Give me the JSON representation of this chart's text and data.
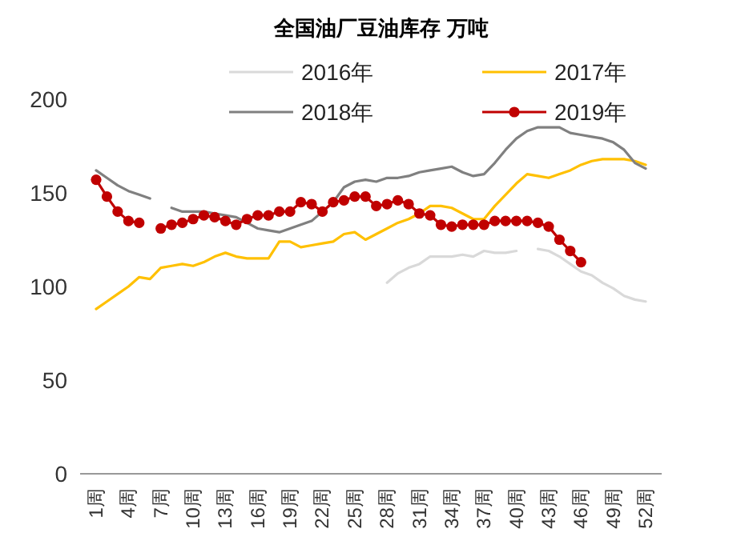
{
  "chart_data": {
    "type": "line",
    "title": "全国油厂豆油库存 万吨",
    "categories": [
      "1周",
      null,
      null,
      "4周",
      null,
      null,
      "7周",
      null,
      null,
      "10周",
      null,
      null,
      "13周",
      null,
      null,
      "16周",
      null,
      null,
      "19周",
      null,
      null,
      "22周",
      null,
      null,
      "25周",
      null,
      null,
      "28周",
      null,
      null,
      "31周",
      null,
      null,
      "34周",
      null,
      null,
      "37周",
      null,
      null,
      "40周",
      null,
      null,
      "43周",
      null,
      null,
      "46周",
      null,
      null,
      "49周",
      null,
      null,
      "52周"
    ],
    "series": [
      {
        "name": "2016年",
        "color": "#d9d9d9",
        "marker": "none",
        "values": [
          null,
          null,
          null,
          null,
          null,
          null,
          null,
          null,
          null,
          null,
          null,
          null,
          null,
          null,
          null,
          null,
          null,
          null,
          null,
          null,
          null,
          null,
          null,
          null,
          null,
          null,
          null,
          102,
          107,
          110,
          112,
          116,
          116,
          116,
          117,
          116,
          119,
          118,
          118,
          119,
          null,
          120,
          119,
          116,
          112,
          108,
          106,
          102,
          99,
          95,
          93,
          92
        ]
      },
      {
        "name": "2017年",
        "color": "#ffc000",
        "marker": "none",
        "values": [
          88,
          92,
          96,
          100,
          105,
          104,
          110,
          111,
          112,
          111,
          113,
          116,
          118,
          116,
          115,
          115,
          115,
          124,
          124,
          121,
          122,
          123,
          124,
          128,
          129,
          125,
          128,
          131,
          134,
          136,
          139,
          143,
          143,
          142,
          139,
          136,
          136,
          143,
          149,
          155,
          160,
          159,
          158,
          160,
          162,
          165,
          167,
          168,
          168,
          168,
          167,
          165
        ]
      },
      {
        "name": "2018年",
        "color": "#808080",
        "marker": "none",
        "values": [
          162,
          158,
          154,
          151,
          149,
          147,
          null,
          142,
          140,
          140,
          140,
          139,
          138,
          137,
          134,
          131,
          130,
          129,
          131,
          133,
          135,
          140,
          145,
          153,
          156,
          157,
          156,
          158,
          158,
          159,
          161,
          162,
          163,
          164,
          161,
          159,
          160,
          166,
          173,
          179,
          183,
          185,
          185,
          185,
          182,
          181,
          180,
          179,
          177,
          173,
          166,
          163
        ]
      },
      {
        "name": "2019年",
        "color": "#c00000",
        "marker": "circle",
        "values": [
          157,
          148,
          140,
          135,
          134,
          null,
          131,
          133,
          134,
          136,
          138,
          137,
          135,
          133,
          136,
          138,
          138,
          140,
          140,
          145,
          144,
          140,
          145,
          146,
          148,
          148,
          143,
          144,
          146,
          144,
          139,
          138,
          133,
          132,
          133,
          133,
          133,
          135,
          135,
          135,
          135,
          134,
          132,
          125,
          119,
          113,
          null,
          null,
          null,
          null,
          null,
          null
        ]
      }
    ],
    "ylim": [
      0,
      200
    ],
    "yticks": [
      0,
      50,
      100,
      150,
      200
    ],
    "grid": false,
    "legend": "top"
  }
}
